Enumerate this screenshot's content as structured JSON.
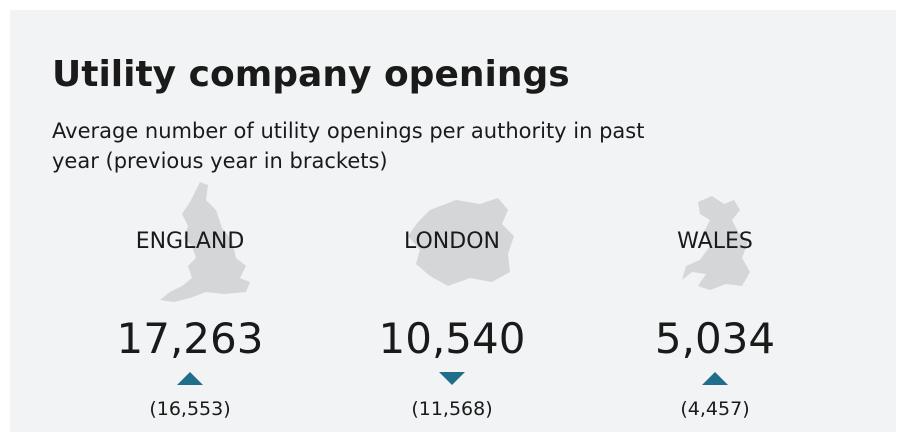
{
  "header": {
    "title": "Utility company openings",
    "subtitle": "Average number of utility openings per authority in past year (previous year in brackets)"
  },
  "regions": [
    {
      "name": "ENGLAND",
      "value": "17,263",
      "previous": "(16,553)",
      "trend": "up"
    },
    {
      "name": "LONDON",
      "value": "10,540",
      "previous": "(11,568)",
      "trend": "down"
    },
    {
      "name": "WALES",
      "value": "5,034",
      "previous": "(4,457)",
      "trend": "up"
    }
  ],
  "arrow_color": "#1f6f8b"
}
